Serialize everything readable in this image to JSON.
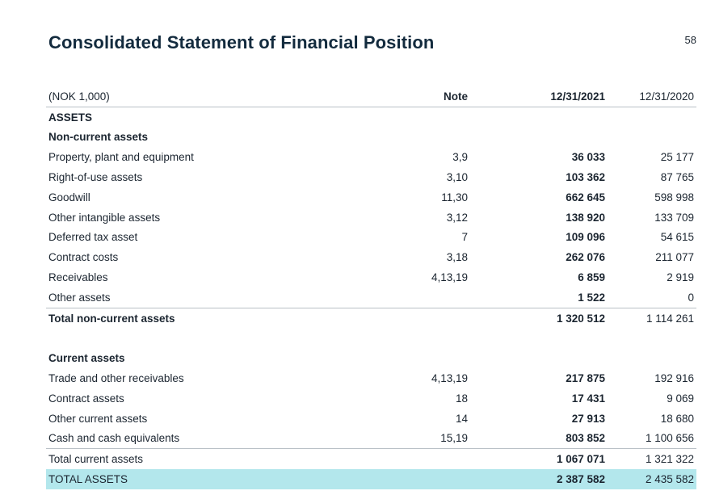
{
  "page_number": "58",
  "title": "Consolidated Statement of Financial Position",
  "columns": {
    "label": "(NOK 1,000)",
    "note": "Note",
    "current": "12/31/2021",
    "previous": "12/31/2020"
  },
  "assets_heading": "ASSETS",
  "non_current": {
    "heading": "Non-current assets",
    "rows": [
      {
        "label": "Property, plant and equipment",
        "note": "3,9",
        "current": "36 033",
        "previous": "25 177"
      },
      {
        "label": "Right-of-use assets",
        "note": "3,10",
        "current": "103 362",
        "previous": "87 765"
      },
      {
        "label": "Goodwill",
        "note": "11,30",
        "current": "662 645",
        "previous": "598 998"
      },
      {
        "label": "Other intangible assets",
        "note": "3,12",
        "current": "138 920",
        "previous": "133 709"
      },
      {
        "label": "Deferred tax asset",
        "note": "7",
        "current": "109 096",
        "previous": "54 615"
      },
      {
        "label": "Contract costs",
        "note": "3,18",
        "current": "262 076",
        "previous": "211 077"
      },
      {
        "label": "Receivables",
        "note": "4,13,19",
        "current": "6 859",
        "previous": "2 919"
      },
      {
        "label": "Other assets",
        "note": "",
        "current": "1 522",
        "previous": "0"
      }
    ],
    "total": {
      "label": "Total non-current assets",
      "current": "1 320 512",
      "previous": "1 114 261"
    }
  },
  "current": {
    "heading": "Current assets",
    "rows": [
      {
        "label": "Trade and other receivables",
        "note": "4,13,19",
        "current": "217 875",
        "previous": "192 916"
      },
      {
        "label": "Contract assets",
        "note": "18",
        "current": "17 431",
        "previous": "9 069"
      },
      {
        "label": "Other current assets",
        "note": "14",
        "current": "27 913",
        "previous": "18 680"
      },
      {
        "label": "Cash and cash equivalents",
        "note": "15,19",
        "current": "803 852",
        "previous": "1 100 656"
      }
    ],
    "total": {
      "label": "Total current assets",
      "current": "1 067 071",
      "previous": "1 321 322"
    }
  },
  "grand_total": {
    "label": "TOTAL ASSETS",
    "current": "2 387 582",
    "previous": "2 435 582"
  },
  "colors": {
    "title": "#132b3e",
    "highlight": "#b3e7ec",
    "rule": "#b9c0c6"
  }
}
